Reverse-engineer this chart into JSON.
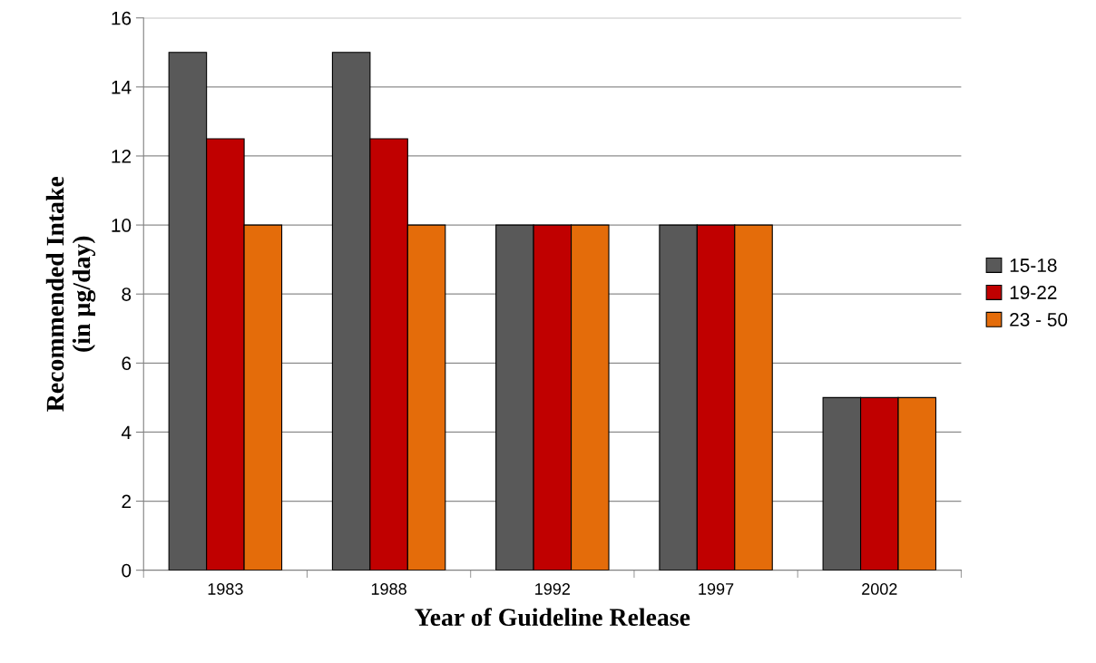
{
  "chart_data": {
    "type": "bar",
    "xlabel": "Year of Guideline Release",
    "ylabel": "Recommended Intake\n(in µg/day)",
    "categories": [
      "1983",
      "1988",
      "1992",
      "1997",
      "2002"
    ],
    "series": [
      {
        "name": "15-18",
        "color": "#595959",
        "values": [
          15,
          15,
          10,
          10,
          5
        ]
      },
      {
        "name": "19-22",
        "color": "#c00000",
        "values": [
          12.5,
          12.5,
          10,
          10,
          5
        ]
      },
      {
        "name": "23 - 50",
        "color": "#e46c0a",
        "values": [
          10,
          10,
          10,
          10,
          5
        ]
      }
    ],
    "ylim": [
      0,
      16
    ],
    "yticks": [
      0,
      2,
      4,
      6,
      8,
      10,
      12,
      14,
      16
    ],
    "grid": "y",
    "legend": "right"
  }
}
